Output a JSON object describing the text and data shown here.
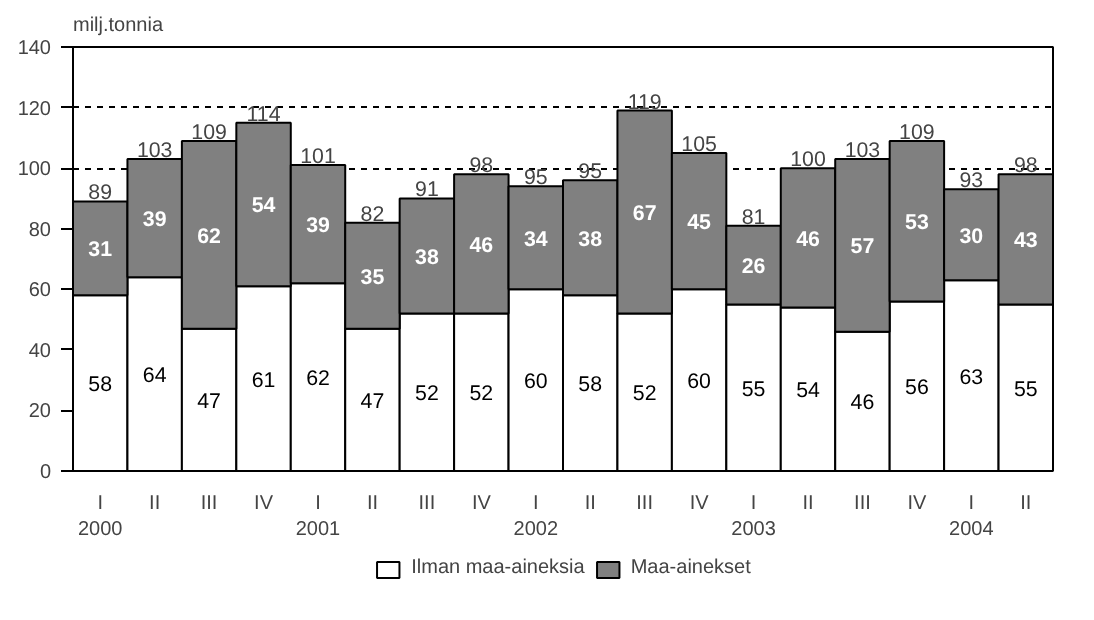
{
  "chart_data": {
    "type": "bar",
    "stacked": true,
    "ylabel": "milj.tonnia",
    "categories": [
      "I\n2000",
      "II",
      "III",
      "IV",
      "I\n2001",
      "II",
      "III",
      "IV",
      "I\n2002",
      "II",
      "III",
      "IV",
      "I\n2003",
      "II",
      "III",
      "IV",
      "I\n2004",
      "II"
    ],
    "series": [
      {
        "name": "Ilman maa-aineksia",
        "color": "#ffffff",
        "values": [
          58,
          64,
          47,
          61,
          62,
          47,
          52,
          52,
          60,
          58,
          52,
          60,
          55,
          54,
          46,
          56,
          63,
          55
        ]
      },
      {
        "name": "Maa-ainekset",
        "color": "#808080",
        "values": [
          31,
          39,
          62,
          54,
          39,
          35,
          38,
          46,
          34,
          38,
          67,
          45,
          26,
          46,
          57,
          53,
          30,
          43
        ]
      }
    ],
    "totals": [
      "89",
      "103",
      "109",
      "114",
      "101",
      "82",
      "91",
      "98",
      "95",
      "95",
      "119",
      "105",
      "81",
      "100",
      "103",
      "109",
      "93",
      "98"
    ],
    "data_labels": true,
    "ylim": [
      0,
      140
    ],
    "yticks": [
      0,
      20,
      40,
      60,
      80,
      100,
      120,
      140
    ],
    "grid": "y",
    "legend": "bottom"
  }
}
